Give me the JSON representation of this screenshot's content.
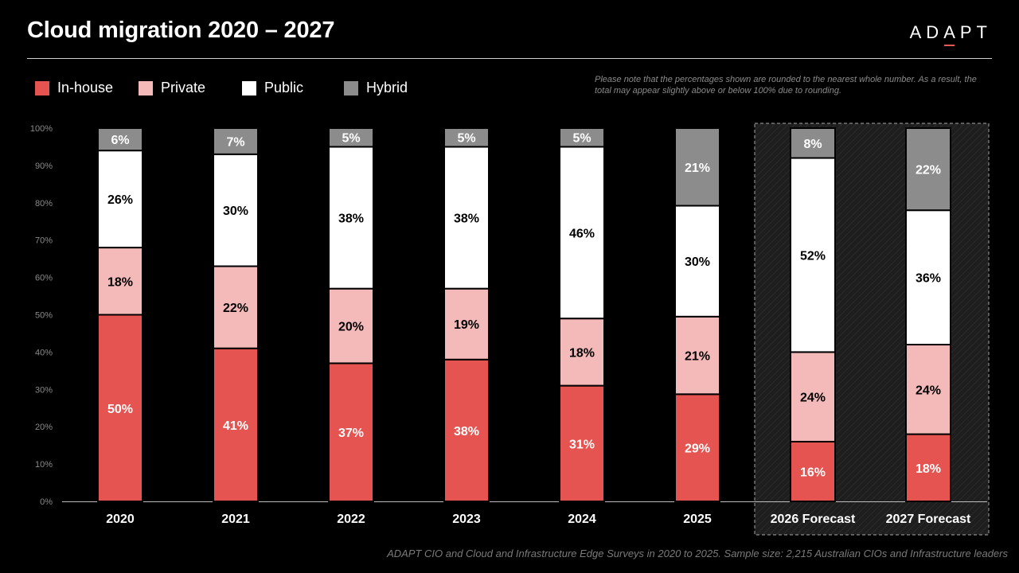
{
  "title": "Cloud migration 2020 – 2027",
  "logo": {
    "pre": "AD",
    "caret": "A",
    "post": "PT"
  },
  "note": "Please note that the percentages shown are rounded to the nearest whole number. As a result, the total may appear slightly above or below 100% due to rounding.",
  "source": "ADAPT CIO and Cloud and Infrastructure Edge Surveys in 2020 to 2025. Sample size: 2,215 Australian CIOs and Infrastructure leaders",
  "chart_data": {
    "type": "bar",
    "stacked": true,
    "categories": [
      "2020",
      "2021",
      "2022",
      "2023",
      "2024",
      "2025",
      "2026 Forecast",
      "2027 Forecast"
    ],
    "forecast_categories": [
      "2026 Forecast",
      "2027 Forecast"
    ],
    "y_ticks": [
      "0%",
      "10%",
      "20%",
      "30%",
      "40%",
      "50%",
      "60%",
      "70%",
      "80%",
      "90%",
      "100%"
    ],
    "ylim": [
      0,
      100
    ],
    "legend_position": "top-left",
    "series": [
      {
        "name": "In-house",
        "color": "#e55451",
        "label_color": "#ffffff",
        "values": [
          50,
          41,
          37,
          38,
          31,
          29,
          16,
          18
        ],
        "labels": [
          "50%",
          "41%",
          "37%",
          "38%",
          "31%",
          "29%",
          "16%",
          "18%"
        ]
      },
      {
        "name": "Private",
        "color": "#f4b9b9",
        "label_color": "#000000",
        "values": [
          18,
          22,
          20,
          19,
          18,
          21,
          24,
          24
        ],
        "labels": [
          "18%",
          "22%",
          "20%",
          "19%",
          "18%",
          "21%",
          "24%",
          "24%"
        ]
      },
      {
        "name": "Public",
        "color": "#ffffff",
        "label_color": "#000000",
        "values": [
          26,
          30,
          38,
          38,
          46,
          30,
          52,
          36
        ],
        "labels": [
          "26%",
          "30%",
          "38%",
          "38%",
          "46%",
          "30%",
          "52%",
          "36%"
        ]
      },
      {
        "name": "Hybrid",
        "color": "#8c8c8c",
        "label_color": "#ffffff",
        "values": [
          6,
          7,
          5,
          5,
          5,
          21,
          8,
          22
        ],
        "labels": [
          "6%",
          "7%",
          "5%",
          "5%",
          "5%",
          "21%",
          "8%",
          "22%"
        ]
      }
    ]
  }
}
